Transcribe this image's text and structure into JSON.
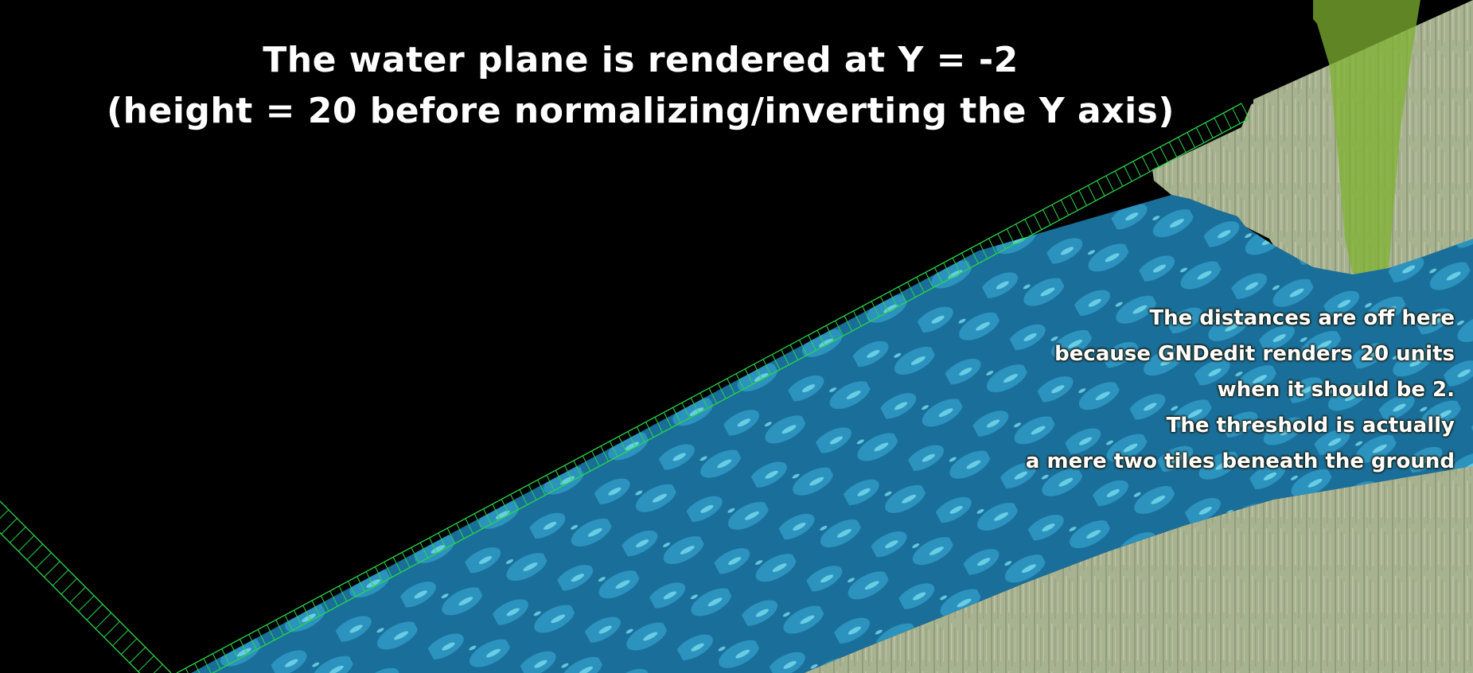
{
  "scene": {
    "colors": {
      "void": "#000000",
      "grid_line": "#27d64a",
      "water_dark": "#1a6f9a",
      "water_mid": "#2c93bf",
      "water_light": "#78dcee",
      "ground": "#a7b290",
      "ground_dark": "#828c6d",
      "grass": "#7fb232"
    }
  },
  "title": {
    "line1": "The water plane is rendered at Y = -2",
    "line2": "(height = 20 before normalizing/inverting the Y axis)"
  },
  "note": {
    "lines": [
      "The distances are off here",
      "because GNDedit renders 20 units",
      "when it should be 2.",
      "The threshold is actually",
      "a mere two tiles beneath the ground"
    ]
  }
}
